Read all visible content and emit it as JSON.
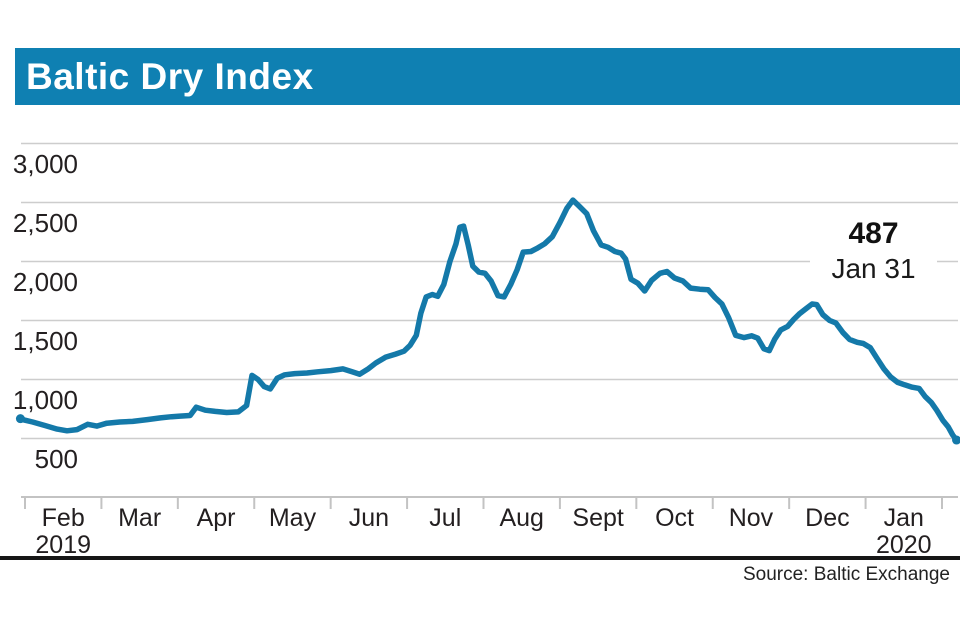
{
  "header": {
    "title": "Baltic Dry Index",
    "bar_color": "#0f80b2"
  },
  "chart_data": {
    "type": "line",
    "title": "Baltic Dry Index",
    "series_name": "Baltic Dry Index",
    "line_color": "#1479a9",
    "grid_color": "#cdcdcd",
    "axis_color": "#c3c3c3",
    "ylim": [
      500,
      3000
    ],
    "y_ticks": [
      500,
      1000,
      1500,
      2000,
      2500,
      3000
    ],
    "y_tick_labels": [
      "500",
      "1,000",
      "1,500",
      "2,000",
      "2,500",
      "3,000"
    ],
    "x_tick_labels": [
      "Feb",
      "Mar",
      "Apr",
      "May",
      "Jun",
      "Jul",
      "Aug",
      "Sept",
      "Oct",
      "Nov",
      "Dec",
      "Jan"
    ],
    "x_year_left": "2019",
    "x_year_right": "2020",
    "annotation": {
      "value": "487",
      "date": "Jan 31"
    },
    "points": [
      [
        -0.06,
        668
      ],
      [
        0.0,
        655
      ],
      [
        0.1,
        640
      ],
      [
        0.26,
        610
      ],
      [
        0.42,
        580
      ],
      [
        0.55,
        565
      ],
      [
        0.68,
        575
      ],
      [
        0.82,
        620
      ],
      [
        0.94,
        605
      ],
      [
        1.07,
        630
      ],
      [
        1.24,
        640
      ],
      [
        1.41,
        645
      ],
      [
        1.6,
        660
      ],
      [
        1.77,
        675
      ],
      [
        1.92,
        685
      ],
      [
        2.03,
        690
      ],
      [
        2.16,
        695
      ],
      [
        2.24,
        765
      ],
      [
        2.36,
        740
      ],
      [
        2.49,
        730
      ],
      [
        2.64,
        720
      ],
      [
        2.79,
        725
      ],
      [
        2.9,
        780
      ],
      [
        2.97,
        1035
      ],
      [
        3.05,
        1000
      ],
      [
        3.13,
        940
      ],
      [
        3.21,
        920
      ],
      [
        3.3,
        1010
      ],
      [
        3.4,
        1040
      ],
      [
        3.53,
        1050
      ],
      [
        3.69,
        1055
      ],
      [
        3.83,
        1065
      ],
      [
        4.0,
        1075
      ],
      [
        4.16,
        1090
      ],
      [
        4.28,
        1065
      ],
      [
        4.38,
        1045
      ],
      [
        4.49,
        1090
      ],
      [
        4.59,
        1140
      ],
      [
        4.72,
        1190
      ],
      [
        4.85,
        1215
      ],
      [
        4.96,
        1240
      ],
      [
        5.04,
        1290
      ],
      [
        5.12,
        1375
      ],
      [
        5.18,
        1560
      ],
      [
        5.25,
        1700
      ],
      [
        5.33,
        1720
      ],
      [
        5.4,
        1705
      ],
      [
        5.48,
        1805
      ],
      [
        5.56,
        2000
      ],
      [
        5.64,
        2150
      ],
      [
        5.69,
        2290
      ],
      [
        5.74,
        2300
      ],
      [
        5.8,
        2140
      ],
      [
        5.86,
        1960
      ],
      [
        5.94,
        1910
      ],
      [
        6.02,
        1900
      ],
      [
        6.1,
        1835
      ],
      [
        6.19,
        1710
      ],
      [
        6.27,
        1700
      ],
      [
        6.36,
        1810
      ],
      [
        6.44,
        1930
      ],
      [
        6.52,
        2080
      ],
      [
        6.62,
        2085
      ],
      [
        6.71,
        2115
      ],
      [
        6.8,
        2150
      ],
      [
        6.9,
        2210
      ],
      [
        7.0,
        2330
      ],
      [
        7.09,
        2450
      ],
      [
        7.17,
        2520
      ],
      [
        7.25,
        2470
      ],
      [
        7.35,
        2405
      ],
      [
        7.44,
        2260
      ],
      [
        7.54,
        2140
      ],
      [
        7.63,
        2120
      ],
      [
        7.72,
        2085
      ],
      [
        7.8,
        2070
      ],
      [
        7.86,
        2020
      ],
      [
        7.93,
        1850
      ],
      [
        8.02,
        1815
      ],
      [
        8.11,
        1750
      ],
      [
        8.2,
        1840
      ],
      [
        8.31,
        1900
      ],
      [
        8.4,
        1915
      ],
      [
        8.5,
        1860
      ],
      [
        8.61,
        1835
      ],
      [
        8.71,
        1775
      ],
      [
        8.83,
        1765
      ],
      [
        8.94,
        1760
      ],
      [
        9.03,
        1695
      ],
      [
        9.12,
        1640
      ],
      [
        9.21,
        1520
      ],
      [
        9.3,
        1375
      ],
      [
        9.41,
        1355
      ],
      [
        9.51,
        1370
      ],
      [
        9.59,
        1350
      ],
      [
        9.67,
        1260
      ],
      [
        9.74,
        1245
      ],
      [
        9.81,
        1340
      ],
      [
        9.89,
        1420
      ],
      [
        9.98,
        1450
      ],
      [
        10.06,
        1510
      ],
      [
        10.14,
        1560
      ],
      [
        10.22,
        1600
      ],
      [
        10.3,
        1640
      ],
      [
        10.36,
        1635
      ],
      [
        10.44,
        1550
      ],
      [
        10.53,
        1500
      ],
      [
        10.61,
        1480
      ],
      [
        10.7,
        1400
      ],
      [
        10.79,
        1340
      ],
      [
        10.89,
        1315
      ],
      [
        10.97,
        1305
      ],
      [
        11.06,
        1270
      ],
      [
        11.15,
        1180
      ],
      [
        11.24,
        1090
      ],
      [
        11.33,
        1020
      ],
      [
        11.42,
        975
      ],
      [
        11.51,
        955
      ],
      [
        11.61,
        935
      ],
      [
        11.7,
        925
      ],
      [
        11.78,
        855
      ],
      [
        11.86,
        805
      ],
      [
        11.93,
        740
      ],
      [
        12.01,
        655
      ],
      [
        12.08,
        600
      ],
      [
        12.14,
        530
      ],
      [
        12.19,
        487
      ]
    ]
  },
  "footer": {
    "source_label": "Source: Baltic Exchange"
  }
}
